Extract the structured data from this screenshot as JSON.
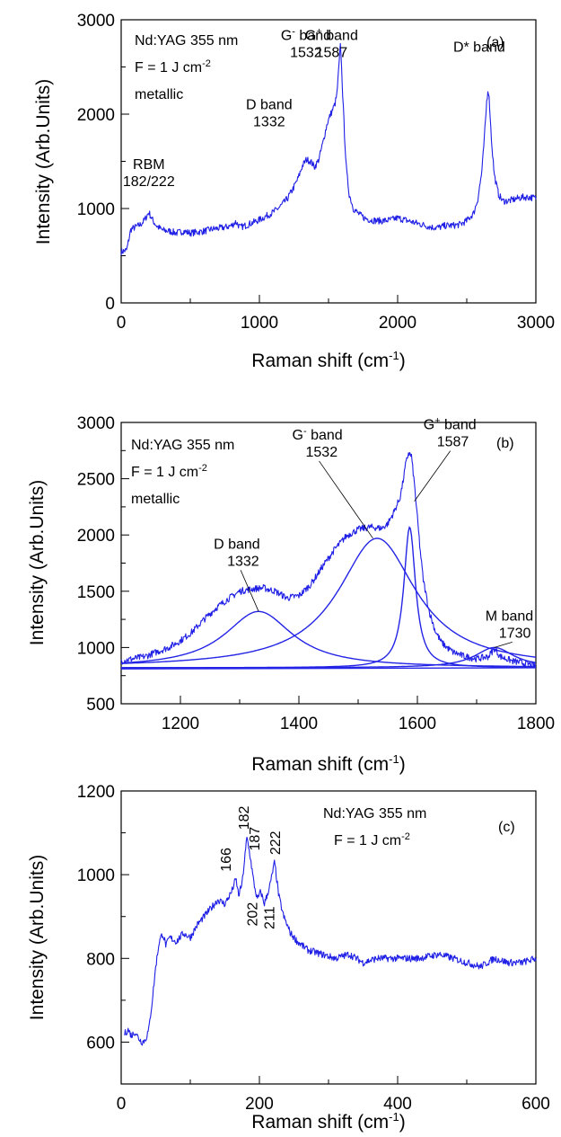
{
  "chart_data": [
    {
      "type": "line",
      "panel_label": "(a)",
      "xlabel": "Raman shift (cm",
      "xlabel_sup": "-1",
      "xlabel_end": ")",
      "ylabel": "Intensity (Arb.Units)",
      "xlim": [
        0,
        3000
      ],
      "ylim": [
        0,
        3000
      ],
      "xticks": [
        0,
        1000,
        2000,
        3000
      ],
      "yticks": [
        0,
        1000,
        2000,
        3000
      ],
      "text_lines": [
        "Nd:YAG 355 nm",
        "F = 1 J cm",
        "metallic"
      ],
      "text_sup": [
        "",
        "-2",
        ""
      ],
      "annotations": [
        {
          "line1": "RBM",
          "line2": "182/222",
          "x": 200,
          "y": 960
        },
        {
          "line1": "D band",
          "line2": "1332",
          "x": 1330,
          "y": 1520
        },
        {
          "line1": "G band",
          "line2": "1532",
          "x": 1532,
          "y": 2100,
          "sup": "-"
        },
        {
          "line1": "G band",
          "line2": "1587",
          "x": 1587,
          "y": 2750,
          "sup": "+"
        },
        {
          "line1": "D* band",
          "line2": "",
          "x": 2655,
          "y": 2280
        }
      ],
      "series": [
        {
          "x": [
            0,
            40,
            70,
            100,
            140,
            170,
            200,
            230,
            260,
            300,
            350,
            400,
            450,
            500,
            550,
            600,
            650,
            700,
            750,
            800,
            830,
            860,
            900,
            950,
            1000,
            1050,
            1100,
            1150,
            1200,
            1240,
            1280,
            1310,
            1340,
            1370,
            1400,
            1430,
            1460,
            1490,
            1510,
            1530,
            1545,
            1560,
            1575,
            1587,
            1600,
            1615,
            1630,
            1650,
            1680,
            1720,
            1760,
            1800,
            1850,
            1900,
            1950,
            2000,
            2050,
            2100,
            2150,
            2200,
            2250,
            2300,
            2350,
            2400,
            2450,
            2500,
            2550,
            2580,
            2610,
            2630,
            2645,
            2655,
            2665,
            2680,
            2700,
            2730,
            2760,
            2800,
            2850,
            2900,
            2950,
            3000
          ],
          "y": [
            540,
            560,
            780,
            800,
            830,
            880,
            960,
            870,
            810,
            770,
            760,
            740,
            760,
            740,
            750,
            760,
            780,
            790,
            800,
            820,
            860,
            800,
            820,
            850,
            880,
            920,
            960,
            1020,
            1100,
            1200,
            1320,
            1450,
            1520,
            1500,
            1440,
            1520,
            1700,
            1900,
            1980,
            2050,
            2100,
            2200,
            2500,
            2750,
            2300,
            1800,
            1400,
            1150,
            1000,
            940,
            900,
            880,
            870,
            870,
            880,
            900,
            880,
            860,
            840,
            820,
            800,
            800,
            820,
            820,
            830,
            870,
            950,
            1100,
            1400,
            1800,
            2150,
            2280,
            2100,
            1700,
            1350,
            1150,
            1080,
            1080,
            1100,
            1120,
            1120,
            1110
          ]
        }
      ]
    },
    {
      "type": "line",
      "panel_label": "(b)",
      "xlabel": "Raman shift (cm",
      "xlabel_sup": "-1",
      "xlabel_end": ")",
      "ylabel": "Intensity (Arb.Units)",
      "xlim": [
        1100,
        1800
      ],
      "ylim": [
        500,
        3000
      ],
      "xticks": [
        1200,
        1400,
        1600,
        1800
      ],
      "yticks": [
        500,
        1000,
        1500,
        2000,
        2500,
        3000
      ],
      "text_lines": [
        "Nd:YAG 355 nm",
        "F = 1 J cm",
        "metallic"
      ],
      "text_sup": [
        "",
        "-2",
        ""
      ],
      "annotations": [
        {
          "line1": "D band",
          "line2": "1332",
          "x": 1332,
          "y": 1320
        },
        {
          "line1": "G band",
          "line2": "1532",
          "x": 1525,
          "y": 1970,
          "sup": "-"
        },
        {
          "line1": "G band",
          "line2": "1587",
          "x": 1595,
          "y": 2300,
          "sup": "+"
        },
        {
          "line1": "M band",
          "line2": "1730",
          "x": 1730,
          "y": 1000
        }
      ],
      "series": [
        {
          "x": [
            1100,
            1120,
            1140,
            1160,
            1180,
            1200,
            1220,
            1240,
            1260,
            1280,
            1300,
            1320,
            1340,
            1360,
            1380,
            1400,
            1420,
            1440,
            1460,
            1480,
            1500,
            1520,
            1540,
            1550,
            1560,
            1570,
            1575,
            1580,
            1585,
            1590,
            1595,
            1600,
            1605,
            1610,
            1620,
            1630,
            1640,
            1650,
            1660,
            1680,
            1700,
            1720,
            1730,
            1740,
            1760,
            1780,
            1800
          ],
          "y": [
            880,
            900,
            920,
            960,
            1000,
            1060,
            1140,
            1250,
            1350,
            1430,
            1500,
            1520,
            1530,
            1500,
            1440,
            1460,
            1560,
            1720,
            1870,
            1990,
            2050,
            2070,
            2060,
            2100,
            2200,
            2320,
            2450,
            2620,
            2730,
            2700,
            2450,
            2150,
            1850,
            1600,
            1320,
            1150,
            1050,
            1000,
            960,
            920,
            900,
            920,
            990,
            920,
            880,
            860,
            840
          ]
        }
      ]
    },
    {
      "type": "line",
      "panel_label": "(c)",
      "xlabel": "Raman shift (cm",
      "xlabel_sup": "-1",
      "xlabel_end": ")",
      "ylabel": "Intensity (Arb.Units)",
      "xlim": [
        0,
        600
      ],
      "ylim": [
        500,
        1200
      ],
      "xticks": [
        0,
        200,
        400,
        600
      ],
      "yticks": [
        600,
        800,
        1000,
        1200
      ],
      "text_lines": [
        "Nd:YAG 355 nm",
        "F = 1 J cm"
      ],
      "text_sup": [
        "",
        "-2"
      ],
      "peak_labels_top": [
        {
          "label": "166",
          "x": 166,
          "y": 990
        },
        {
          "label": "182",
          "x": 182,
          "y": 1090
        },
        {
          "label": "187",
          "x": 187,
          "y": 1040
        },
        {
          "label": "222",
          "x": 222,
          "y": 1030
        }
      ],
      "peak_labels_bottom": [
        {
          "label": "202",
          "x": 202,
          "y": 960
        },
        {
          "label": "211",
          "x": 211,
          "y": 950
        }
      ],
      "series": [
        {
          "x": [
            5,
            10,
            15,
            20,
            25,
            30,
            35,
            40,
            45,
            50,
            55,
            60,
            65,
            70,
            80,
            90,
            100,
            110,
            120,
            130,
            140,
            150,
            160,
            166,
            170,
            175,
            182,
            187,
            192,
            197,
            202,
            207,
            211,
            216,
            222,
            228,
            235,
            245,
            255,
            270,
            290,
            310,
            330,
            350,
            370,
            400,
            430,
            460,
            480,
            500,
            520,
            540,
            560,
            580,
            600
          ],
          "y": [
            620,
            630,
            615,
            625,
            610,
            600,
            605,
            630,
            700,
            780,
            840,
            860,
            830,
            850,
            840,
            860,
            850,
            880,
            900,
            920,
            940,
            930,
            960,
            990,
            950,
            980,
            1090,
            1040,
            980,
            940,
            960,
            930,
            950,
            980,
            1030,
            950,
            900,
            860,
            840,
            820,
            810,
            800,
            810,
            790,
            800,
            800,
            800,
            810,
            800,
            790,
            780,
            800,
            790,
            790,
            800
          ]
        }
      ]
    }
  ]
}
